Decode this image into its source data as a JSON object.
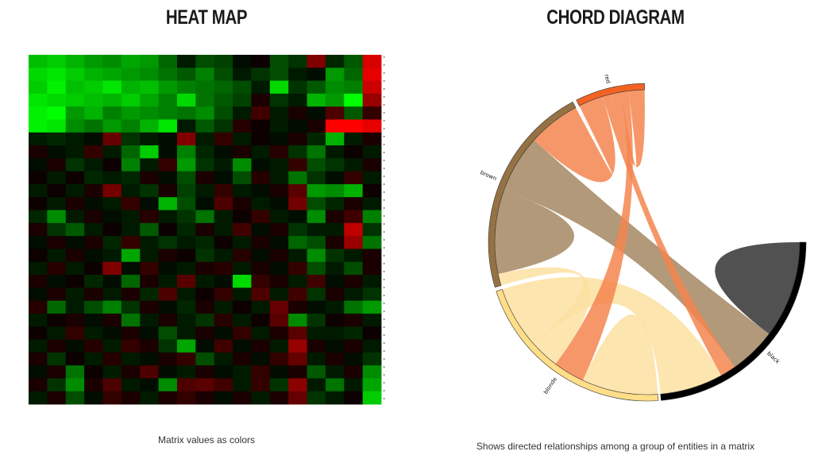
{
  "heatmap": {
    "title": "HEAT MAP",
    "caption": "Matrix values as colors",
    "chart_data": {
      "type": "heatmap",
      "rows": 27,
      "cols": 19,
      "color_scale": {
        "low": "#00ff00",
        "mid": "#000000",
        "high": "#ff0000"
      },
      "values": [
        [
          -0.75,
          -0.8,
          -0.7,
          -0.6,
          -0.55,
          -0.65,
          -0.6,
          -0.4,
          -0.1,
          -0.3,
          -0.25,
          -0.05,
          0.05,
          -0.3,
          -0.2,
          0.5,
          -0.15,
          -0.35,
          0.85
        ],
        [
          -0.85,
          -0.9,
          -0.8,
          -0.7,
          -0.65,
          -0.6,
          -0.55,
          -0.45,
          -0.35,
          -0.5,
          -0.3,
          -0.1,
          -0.2,
          -0.3,
          -0.1,
          -0.05,
          -0.6,
          -0.4,
          0.9
        ],
        [
          -0.8,
          -0.95,
          -0.75,
          -0.8,
          -0.9,
          -0.7,
          -0.75,
          -0.6,
          -0.5,
          -0.45,
          -0.4,
          -0.3,
          -0.1,
          -0.85,
          -0.2,
          -0.35,
          -0.55,
          -0.5,
          0.8
        ],
        [
          -0.9,
          -0.85,
          -0.8,
          -0.75,
          -0.7,
          -0.8,
          -0.65,
          -0.5,
          -0.85,
          -0.45,
          -0.35,
          -0.25,
          0.1,
          -0.2,
          -0.1,
          -0.7,
          -0.6,
          -1.0,
          0.6
        ],
        [
          -0.95,
          -1.0,
          -0.6,
          -0.7,
          -0.5,
          -0.6,
          -0.55,
          -0.5,
          -0.45,
          -0.55,
          -0.3,
          -0.1,
          0.25,
          -0.1,
          0.1,
          -0.05,
          0.3,
          -0.35,
          0.2
        ],
        [
          -0.95,
          -0.9,
          -0.55,
          -0.45,
          -0.6,
          -0.5,
          -0.7,
          -0.9,
          -0.1,
          -0.35,
          -0.2,
          0.15,
          0.05,
          -0.1,
          -0.05,
          0.1,
          1.0,
          1.0,
          0.9
        ],
        [
          -0.1,
          -0.15,
          -0.1,
          -0.05,
          0.4,
          -0.2,
          -0.1,
          -0.05,
          0.5,
          -0.1,
          0.2,
          -0.1,
          0.05,
          -0.05,
          0.1,
          -0.15,
          -0.7,
          -0.1,
          0.1
        ],
        [
          0.1,
          -0.05,
          -0.1,
          0.2,
          -0.1,
          -0.4,
          -0.8,
          -0.05,
          -0.5,
          -0.15,
          -0.05,
          0.1,
          -0.1,
          0.15,
          -0.2,
          -0.45,
          -0.1,
          0.05,
          -0.1
        ],
        [
          -0.05,
          0.1,
          -0.2,
          -0.1,
          0.05,
          -0.5,
          -0.1,
          0.2,
          -0.6,
          -0.2,
          -0.1,
          -0.55,
          -0.05,
          -0.1,
          0.2,
          -0.3,
          -0.2,
          -0.1,
          0.1
        ],
        [
          0.05,
          -0.1,
          0.05,
          -0.15,
          -0.1,
          -0.15,
          0.1,
          -0.05,
          -0.3,
          0.1,
          -0.05,
          -0.3,
          0.15,
          -0.1,
          -0.45,
          -0.2,
          -0.05,
          0.2,
          -0.1
        ],
        [
          -0.1,
          0.05,
          -0.1,
          0.1,
          0.45,
          -0.1,
          -0.2,
          0.1,
          -0.25,
          -0.1,
          0.2,
          -0.1,
          -0.05,
          0.1,
          0.35,
          -0.6,
          -0.55,
          -0.7,
          0.05
        ],
        [
          0.05,
          -0.1,
          0.1,
          -0.05,
          -0.1,
          0.2,
          -0.05,
          -0.7,
          -0.3,
          -0.05,
          0.3,
          0.1,
          -0.1,
          -0.05,
          0.45,
          -0.3,
          -0.15,
          0.1,
          -0.1
        ],
        [
          -0.15,
          -0.55,
          -0.1,
          0.1,
          -0.05,
          -0.1,
          0.15,
          -0.1,
          -0.2,
          -0.45,
          -0.1,
          0.05,
          0.2,
          -0.1,
          -0.05,
          -0.55,
          0.1,
          0.25,
          -0.5
        ],
        [
          0.1,
          -0.2,
          -0.35,
          -0.1,
          0.05,
          -0.1,
          -0.35,
          0.05,
          -0.15,
          0.1,
          -0.1,
          0.25,
          -0.05,
          0.1,
          -0.2,
          -0.1,
          -0.1,
          0.75,
          -0.2
        ],
        [
          -0.05,
          0.1,
          -0.05,
          0.1,
          -0.15,
          0.2,
          -0.1,
          -0.2,
          -0.1,
          -0.15,
          0.05,
          -0.1,
          0.1,
          -0.05,
          -0.4,
          -0.3,
          0.1,
          0.6,
          -0.45
        ],
        [
          0.05,
          -0.1,
          0.1,
          -0.05,
          -0.1,
          -0.65,
          -0.1,
          0.1,
          0.05,
          -0.2,
          -0.1,
          0.15,
          -0.05,
          0.1,
          -0.1,
          -0.55,
          -0.2,
          -0.1,
          0.1
        ],
        [
          -0.1,
          0.15,
          -0.1,
          0.05,
          0.5,
          -0.05,
          0.2,
          -0.05,
          -0.1,
          0.1,
          0.15,
          -0.1,
          0.1,
          -0.05,
          0.2,
          -0.3,
          -0.1,
          -0.3,
          0.1
        ],
        [
          0.1,
          -0.05,
          0.05,
          -0.15,
          -0.05,
          -0.4,
          0.1,
          -0.1,
          0.35,
          -0.1,
          -0.05,
          -0.85,
          0.2,
          0.1,
          -0.1,
          0.25,
          -0.05,
          0.1,
          -0.1
        ],
        [
          -0.05,
          0.1,
          -0.1,
          0.1,
          -0.1,
          0.1,
          -0.15,
          0.3,
          -0.1,
          0.05,
          0.2,
          -0.1,
          0.3,
          -0.1,
          0.25,
          -0.2,
          0.1,
          -0.1,
          -0.2
        ],
        [
          0.15,
          -0.4,
          -0.1,
          -0.3,
          -0.5,
          -0.2,
          0.1,
          -0.05,
          -0.15,
          0.1,
          -0.1,
          0.05,
          -0.1,
          0.4,
          0.1,
          -0.05,
          -0.1,
          -0.45,
          -0.6
        ],
        [
          -0.1,
          0.05,
          0.1,
          -0.05,
          0.1,
          -0.45,
          -0.1,
          0.1,
          -0.1,
          -0.2,
          0.15,
          -0.1,
          0.05,
          0.35,
          -0.55,
          -0.2,
          0.05,
          0.1,
          -0.1
        ],
        [
          0.05,
          -0.1,
          0.2,
          -0.1,
          -0.05,
          0.1,
          -0.05,
          -0.3,
          -0.1,
          0.1,
          -0.05,
          0.2,
          -0.1,
          0.1,
          0.35,
          -0.1,
          -0.1,
          -0.15,
          0.05
        ],
        [
          -0.1,
          0.1,
          -0.05,
          0.15,
          -0.1,
          0.2,
          0.1,
          -0.2,
          -0.65,
          -0.05,
          0.25,
          -0.05,
          0.1,
          -0.1,
          0.6,
          0.1,
          -0.05,
          0.1,
          -0.1
        ],
        [
          0.1,
          -0.2,
          0.05,
          -0.1,
          0.15,
          -0.1,
          -0.05,
          0.1,
          0.2,
          -0.3,
          -0.1,
          0.1,
          -0.05,
          0.2,
          0.4,
          -0.1,
          0.1,
          -0.05,
          -0.2
        ],
        [
          -0.05,
          0.1,
          -0.45,
          0.05,
          -0.1,
          0.1,
          0.3,
          -0.05,
          -0.1,
          0.1,
          -0.05,
          -0.1,
          0.2,
          -0.05,
          0.1,
          -0.35,
          -0.1,
          0.1,
          -0.55
        ],
        [
          0.1,
          -0.2,
          -0.55,
          0.1,
          0.3,
          -0.1,
          -0.05,
          -0.55,
          0.3,
          0.35,
          0.25,
          -0.1,
          0.2,
          -0.2,
          0.55,
          -0.1,
          -0.45,
          -0.1,
          -0.65
        ],
        [
          -0.1,
          0.1,
          -0.3,
          -0.05,
          0.2,
          0.1,
          -0.1,
          0.1,
          0.2,
          0.1,
          -0.05,
          0.1,
          -0.1,
          0.1,
          0.4,
          -0.2,
          -0.1,
          0.05,
          -0.8
        ]
      ]
    }
  },
  "chord": {
    "title": "CHORD DIAGRAM",
    "caption": "Shows directed relationships among a group of entities in a matrix",
    "chart_data": {
      "type": "chord",
      "groups": [
        {
          "name": "black",
          "color": "#000000",
          "start": 90,
          "end": 175
        },
        {
          "name": "blonde",
          "color": "#ffdd89",
          "start": 176,
          "end": 252
        },
        {
          "name": "brown",
          "color": "#957244",
          "start": 253.5,
          "end": 332
        },
        {
          "name": "red",
          "color": "#f26223",
          "start": 333.5,
          "end": 359
        }
      ],
      "chords": [
        {
          "from": "black",
          "fromArc": [
            90,
            127
          ],
          "to": "black",
          "toArc": [
            90,
            127
          ],
          "color": "#333333"
        },
        {
          "from": "black",
          "fromArc": [
            127,
            145
          ],
          "to": "brown",
          "toArc": [
            290,
            312
          ],
          "color": "#a38763"
        },
        {
          "from": "black",
          "fromArc": [
            145,
            151
          ],
          "to": "red",
          "toArc": [
            343,
            346
          ],
          "color": "#f4854f"
        },
        {
          "from": "black",
          "fromArc": [
            151,
            175
          ],
          "to": "blonde",
          "toArc": [
            228,
            252
          ],
          "color": "#fce0a0"
        },
        {
          "from": "blonde",
          "fromArc": [
            176,
            205
          ],
          "to": "blonde",
          "toArc": [
            176,
            205
          ],
          "color": "#fce0a0"
        },
        {
          "from": "blonde",
          "fromArc": [
            205,
            217
          ],
          "to": "red",
          "toArc": [
            350,
            353
          ],
          "color": "#f4854f"
        },
        {
          "from": "blonde",
          "fromArc": [
            217,
            228
          ],
          "to": "brown",
          "toArc": [
            253.5,
            258
          ],
          "color": "#fce0a0"
        },
        {
          "from": "brown",
          "fromArc": [
            258,
            290
          ],
          "to": "brown",
          "toArc": [
            258,
            290
          ],
          "color": "#a38763"
        },
        {
          "from": "brown",
          "fromArc": [
            312,
            332
          ],
          "to": "red",
          "toArc": [
            333.5,
            343
          ],
          "color": "#f4854f"
        },
        {
          "from": "red",
          "fromArc": [
            346,
            350
          ],
          "to": "red",
          "toArc": [
            353,
            359
          ],
          "color": "#f4854f"
        }
      ]
    }
  }
}
